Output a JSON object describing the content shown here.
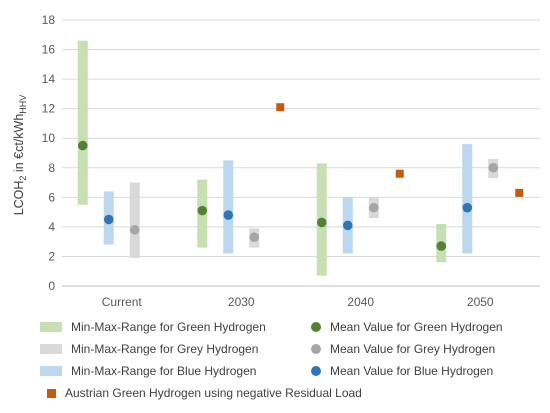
{
  "chart_data": {
    "type": "range-bar+scatter",
    "categories": [
      "Current",
      "2030",
      "2040",
      "2050"
    ],
    "ylabel": {
      "main": "LCOH",
      "sub1": "2",
      "mid": " in €ct/kWh",
      "sub2": "HHV"
    },
    "ylim": [
      0,
      18
    ],
    "yticks": [
      "0",
      "2",
      "4",
      "6",
      "8",
      "10",
      "12",
      "14",
      "16",
      "18"
    ],
    "grid": true,
    "ranges": [
      {
        "name": "Min-Max-Range for Green Hydrogen",
        "color": "#c6e0b4",
        "values": [
          [
            5.5,
            16.6
          ],
          [
            2.6,
            7.2
          ],
          [
            0.7,
            8.3
          ],
          [
            1.6,
            4.2
          ]
        ]
      },
      {
        "name": "Min-Max-Range for Blue Hydrogen",
        "color": "#bdd7ee",
        "values": [
          [
            2.8,
            6.4
          ],
          [
            2.2,
            8.5
          ],
          [
            2.2,
            6.0
          ],
          [
            2.2,
            9.6
          ]
        ]
      },
      {
        "name": "Min-Max-Range for Grey Hydrogen",
        "color": "#d9d9d9",
        "values": [
          [
            1.9,
            7.0
          ],
          [
            2.6,
            3.9
          ],
          [
            4.6,
            6.0
          ],
          [
            7.3,
            8.6
          ]
        ]
      }
    ],
    "means": [
      {
        "name": "Mean Value for Green Hydrogen",
        "color": "#548235",
        "values": [
          9.5,
          5.1,
          4.3,
          2.7
        ]
      },
      {
        "name": "Mean Value for Blue Hydrogen",
        "color": "#2e75b6",
        "values": [
          4.5,
          4.8,
          4.1,
          5.3
        ]
      },
      {
        "name": "Mean Value for Grey Hydrogen",
        "color": "#a6a6a6",
        "values": [
          3.8,
          3.3,
          5.3,
          8.0
        ]
      }
    ],
    "austrian": {
      "name": "Austrian Green Hydrogen using negative Residual Load",
      "color": "#c55a11",
      "values": [
        null,
        12.1,
        7.6,
        6.3
      ]
    }
  },
  "legend": {
    "green_range": "Min-Max-Range for Green Hydrogen",
    "green_mean": "Mean Value for Green Hydrogen",
    "grey_range": "Min-Max-Range for Grey Hydrogen",
    "grey_mean": "Mean Value for Grey Hydrogen",
    "blue_range": "Min-Max-Range for Blue Hydrogen",
    "blue_mean": "Mean Value for Blue Hydrogen",
    "austrian": "Austrian Green Hydrogen using negative Residual Load"
  }
}
